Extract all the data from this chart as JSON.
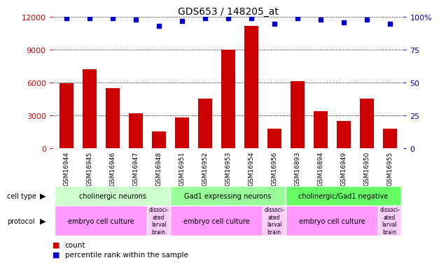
{
  "title": "GDS653 / 148205_at",
  "samples": [
    "GSM16944",
    "GSM16945",
    "GSM16946",
    "GSM16947",
    "GSM16948",
    "GSM16951",
    "GSM16952",
    "GSM16953",
    "GSM16954",
    "GSM16956",
    "GSM16893",
    "GSM16894",
    "GSM16949",
    "GSM16950",
    "GSM16955"
  ],
  "counts": [
    5900,
    7200,
    5500,
    3200,
    1500,
    2800,
    4500,
    9000,
    11200,
    1800,
    6100,
    3400,
    2500,
    4500,
    1800
  ],
  "percentile_ranks": [
    99,
    99,
    99,
    98,
    93,
    97,
    99,
    99,
    99,
    95,
    99,
    98,
    96,
    98,
    95
  ],
  "bar_color": "#cc0000",
  "dot_color": "#0000cc",
  "ylim_left": [
    0,
    12000
  ],
  "ylim_right": [
    0,
    100
  ],
  "yticks_left": [
    0,
    3000,
    6000,
    9000,
    12000
  ],
  "yticks_right": [
    0,
    25,
    50,
    75,
    100
  ],
  "cell_type_groups": [
    {
      "label": "cholinergic neurons",
      "start": 0,
      "end": 4,
      "color": "#ccffcc"
    },
    {
      "label": "Gad1 expressing neurons",
      "start": 5,
      "end": 9,
      "color": "#99ff99"
    },
    {
      "label": "cholinergic/Gad1 negative",
      "start": 10,
      "end": 14,
      "color": "#66ff66"
    }
  ],
  "protocol_groups": [
    {
      "label": "embryo cell culture",
      "start": 0,
      "end": 3,
      "color": "#ff99ff"
    },
    {
      "label": "dissociated larval brain",
      "start": 4,
      "end": 4,
      "color": "#ffccff"
    },
    {
      "label": "embryo cell culture",
      "start": 5,
      "end": 8,
      "color": "#ff99ff"
    },
    {
      "label": "dissociated larval brain",
      "start": 9,
      "end": 9,
      "color": "#ffccff"
    },
    {
      "label": "embryo cell culture",
      "start": 10,
      "end": 13,
      "color": "#ff99ff"
    },
    {
      "label": "dissociated larval brain",
      "start": 14,
      "end": 14,
      "color": "#ffccff"
    }
  ],
  "legend_items": [
    {
      "label": "count",
      "color": "#cc0000"
    },
    {
      "label": "percentile rank within the sample",
      "color": "#0000cc"
    }
  ],
  "xtick_bg": "#cccccc"
}
